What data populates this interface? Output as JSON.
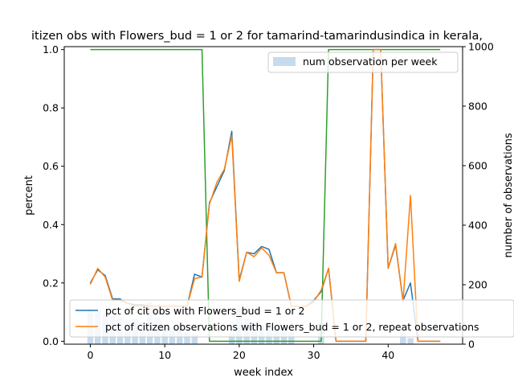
{
  "chart_data": {
    "type": "line",
    "title": "itizen obs with Flowers_bud = 1 or 2 for tamarind-tamarindusindica in kerala,",
    "xlabel": "week index",
    "ylabel": "percent",
    "y2label": "number of observations",
    "xlim": [
      -3.5,
      50
    ],
    "ylim": [
      -0.01,
      1.01
    ],
    "y2lim": [
      0,
      1000
    ],
    "xticks": [
      0,
      10,
      20,
      30,
      40
    ],
    "yticks": [
      0.0,
      0.2,
      0.4,
      0.6,
      0.8,
      1.0
    ],
    "y2ticks": [
      0,
      200,
      400,
      600,
      800,
      1000
    ],
    "grid": false,
    "legend_upper": {
      "placement": "top-right",
      "entries": [
        "num observation per week"
      ]
    },
    "legend_lower": {
      "placement": "bottom-left",
      "entries": [
        "pct of cit obs with Flowers_bud = 1 or 2",
        "pct of citizen observations with Flowers_bud = 1 or 2, repeat observations"
      ]
    },
    "colors": {
      "blue": "#1f77b4",
      "orange": "#ff7f0e",
      "green": "#2ca02c",
      "bar": "#c6dbed"
    },
    "x": [
      0,
      1,
      2,
      3,
      4,
      5,
      6,
      7,
      8,
      9,
      10,
      11,
      12,
      13,
      14,
      15,
      16,
      17,
      18,
      19,
      20,
      21,
      22,
      23,
      24,
      25,
      26,
      27,
      28,
      29,
      30,
      31,
      32,
      33,
      34,
      35,
      36,
      37,
      38,
      39,
      40,
      41,
      42,
      43,
      44,
      45,
      46,
      47
    ],
    "series": [
      {
        "name": "pct of cit obs with Flowers_bud = 1 or 2",
        "color": "blue",
        "axis": "left",
        "values": [
          0.2,
          0.245,
          0.225,
          0.145,
          0.145,
          0.13,
          0.125,
          0.125,
          0.12,
          0.12,
          0.12,
          0.12,
          0.12,
          0.12,
          0.23,
          0.22,
          0.475,
          0.53,
          0.585,
          0.72,
          0.21,
          0.305,
          0.3,
          0.325,
          0.315,
          0.235,
          0.235,
          0.12,
          0.12,
          0.12,
          0.14,
          0.17,
          0.25,
          0.0,
          0.0,
          0.0,
          0.0,
          0.0,
          1.0,
          1.0,
          0.25,
          0.33,
          0.14,
          0.2,
          0.0,
          0.0,
          0.0,
          0.0
        ]
      },
      {
        "name": "pct of citizen observations with Flowers_bud = 1 or 2, repeat observations",
        "color": "orange",
        "axis": "left",
        "values": [
          0.195,
          0.25,
          0.22,
          0.14,
          0.14,
          0.13,
          0.12,
          0.12,
          0.12,
          0.12,
          0.12,
          0.12,
          0.12,
          0.12,
          0.215,
          0.22,
          0.47,
          0.545,
          0.59,
          0.705,
          0.205,
          0.305,
          0.29,
          0.32,
          0.295,
          0.235,
          0.235,
          0.12,
          0.12,
          0.12,
          0.135,
          0.175,
          0.25,
          0.0,
          0.0,
          0.0,
          0.0,
          0.0,
          1.0,
          1.0,
          0.25,
          0.335,
          0.135,
          0.5,
          0.0,
          0.0,
          0.0,
          0.0
        ]
      },
      {
        "name": "",
        "color": "green",
        "axis": "left",
        "values": [
          1,
          1,
          1,
          1,
          1,
          1,
          1,
          1,
          1,
          1,
          1,
          1,
          1,
          1,
          1,
          1,
          0,
          0,
          0,
          0,
          0,
          0,
          0,
          0,
          0,
          0,
          0,
          0,
          0,
          0,
          0,
          0,
          1,
          1,
          1,
          1,
          1,
          1,
          1,
          1,
          1,
          1,
          1,
          1,
          1,
          1,
          1,
          1
        ]
      }
    ],
    "bars": {
      "name": "num observation per week",
      "color": "bar",
      "axis": "right",
      "values": [
        120,
        115,
        100,
        95,
        90,
        80,
        85,
        75,
        140,
        90,
        65,
        50,
        45,
        40,
        35,
        0,
        0,
        0,
        0,
        35,
        120,
        85,
        75,
        65,
        65,
        60,
        50,
        40,
        0,
        0,
        0,
        70,
        0,
        0,
        0,
        0,
        0,
        0,
        0,
        0,
        0,
        0,
        40,
        20,
        0,
        0,
        0,
        0
      ]
    }
  }
}
